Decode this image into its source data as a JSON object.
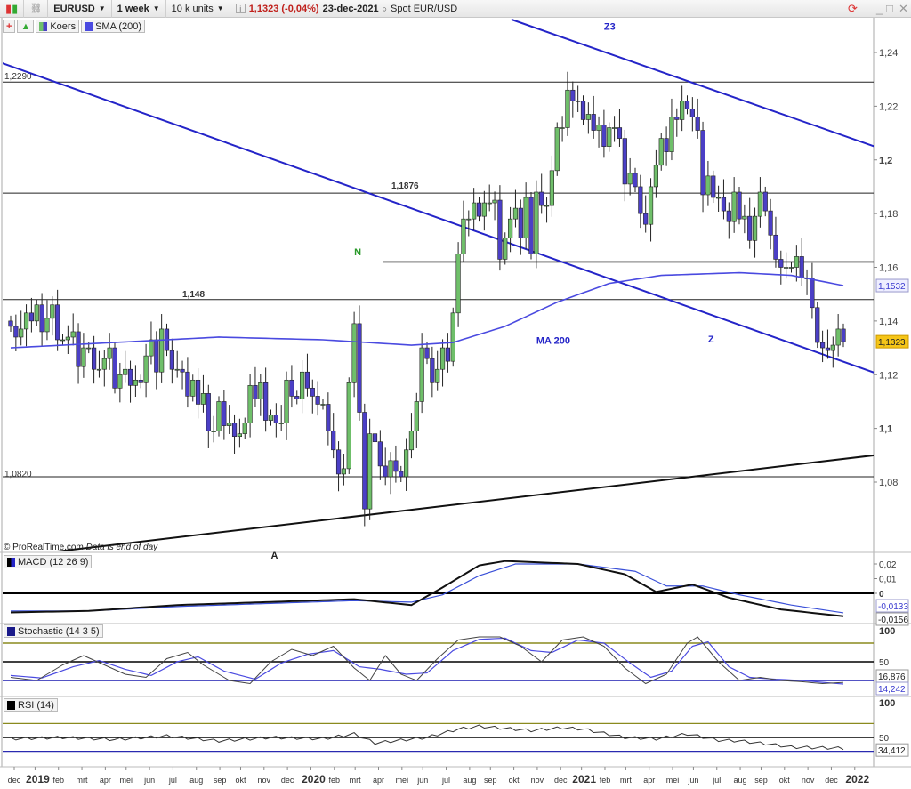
{
  "toolbar": {
    "symbol": "EURUSD",
    "timeframe": "1 week",
    "units": "10 k units",
    "price": "1,1323 (-0,04%)",
    "date": "23-dec-2021",
    "instrument": "Spot EUR/USD",
    "icons": [
      "candlestick-icon",
      "link-icon",
      "info-icon",
      "refresh-icon",
      "minimize-icon",
      "maximize-icon",
      "close-icon"
    ]
  },
  "legend": {
    "price": "Koers",
    "sma": "SMA (200)"
  },
  "copyright": "© ProRealTime.com",
  "data_note": "Data is end of day",
  "colors": {
    "up": "#6fbf6a",
    "down": "#4b3fc6",
    "trend_blue": "#2424c8",
    "sma": "#4a4ae0",
    "olive": "#8a8a1e",
    "last_price_bg": "#f5c518"
  },
  "chart_data": [
    {
      "type": "candlestick",
      "title": "EURUSD",
      "interval": "1 week",
      "start": "2018-12-03",
      "ylim": [
        1.06,
        1.25
      ],
      "yticks": [
        "1,08",
        "1,1",
        "1,12",
        "1,14",
        "1,16",
        "1,18",
        "1,2",
        "1,22",
        "1,24"
      ],
      "xticks": [
        "dec",
        "2019",
        "feb",
        "mrt",
        "apr",
        "mei",
        "jun",
        "jul",
        "aug",
        "sep",
        "okt",
        "nov",
        "dec",
        "2020",
        "feb",
        "mrt",
        "apr",
        "mei",
        "jun",
        "jul",
        "aug",
        "sep",
        "okt",
        "nov",
        "dec",
        "2021",
        "feb",
        "mrt",
        "apr",
        "mei",
        "jun",
        "jul",
        "aug",
        "sep",
        "okt",
        "nov",
        "dec",
        "2022"
      ],
      "weekly_close": [
        1.138,
        1.134,
        1.137,
        1.143,
        1.14,
        1.146,
        1.136,
        1.141,
        1.146,
        1.133,
        1.133,
        1.134,
        1.136,
        1.123,
        1.13,
        1.13,
        1.122,
        1.122,
        1.126,
        1.13,
        1.115,
        1.12,
        1.122,
        1.116,
        1.118,
        1.117,
        1.127,
        1.133,
        1.121,
        1.137,
        1.129,
        1.122,
        1.122,
        1.121,
        1.112,
        1.118,
        1.109,
        1.113,
        1.099,
        1.099,
        1.11,
        1.101,
        1.102,
        1.097,
        1.098,
        1.102,
        1.116,
        1.111,
        1.117,
        1.103,
        1.105,
        1.102,
        1.102,
        1.118,
        1.112,
        1.111,
        1.121,
        1.115,
        1.112,
        1.109,
        1.109,
        1.099,
        1.092,
        1.083,
        1.085,
        1.117,
        1.139,
        1.106,
        1.07,
        1.098,
        1.095,
        1.086,
        1.082,
        1.088,
        1.084,
        1.082,
        1.092,
        1.099,
        1.11,
        1.13,
        1.126,
        1.117,
        1.122,
        1.13,
        1.125,
        1.143,
        1.165,
        1.178,
        1.178,
        1.184,
        1.179,
        1.184,
        1.184,
        1.185,
        1.163,
        1.171,
        1.178,
        1.182,
        1.171,
        1.186,
        1.165,
        1.188,
        1.183,
        1.183,
        1.196,
        1.212,
        1.212,
        1.226,
        1.222,
        1.222,
        1.215,
        1.217,
        1.211,
        1.213,
        1.205,
        1.212,
        1.212,
        1.208,
        1.191,
        1.195,
        1.19,
        1.18,
        1.176,
        1.19,
        1.198,
        1.208,
        1.203,
        1.216,
        1.215,
        1.222,
        1.219,
        1.216,
        1.211,
        1.187,
        1.194,
        1.186,
        1.186,
        1.181,
        1.177,
        1.188,
        1.178,
        1.179,
        1.17,
        1.179,
        1.188,
        1.181,
        1.172,
        1.163,
        1.16,
        1.16,
        1.16,
        1.164,
        1.156,
        1.156,
        1.145,
        1.132,
        1.13,
        1.129,
        1.131,
        1.137,
        1.1323
      ],
      "sma200": [
        [
          0,
          1.13
        ],
        [
          20,
          1.132
        ],
        [
          40,
          1.134
        ],
        [
          60,
          1.133
        ],
        [
          77,
          1.131
        ],
        [
          85,
          1.132
        ],
        [
          95,
          1.138
        ],
        [
          105,
          1.147
        ],
        [
          115,
          1.154
        ],
        [
          125,
          1.157
        ],
        [
          140,
          1.158
        ],
        [
          150,
          1.157
        ],
        [
          160,
          1.1532
        ]
      ],
      "last_price": "1,1323",
      "sma_last": "1,1532",
      "horizontal_levels": [
        {
          "value": 1.229,
          "label": "1,2290"
        },
        {
          "value": 1.1876,
          "label": "1,1876"
        },
        {
          "value": 1.148,
          "label": "1,148"
        },
        {
          "value": 1.162,
          "label": "",
          "from_week": 71.5
        },
        {
          "value": 1.082,
          "label": "1,0820"
        }
      ],
      "trendlines": [
        {
          "color": "blue",
          "p1": [
            -2,
            1.2363
          ],
          "p2": [
            166,
            1.1207
          ]
        },
        {
          "color": "blue",
          "p1": [
            96.2,
            1.2523
          ],
          "p2": [
            166,
            1.205
          ]
        },
        {
          "color": "black",
          "p1": [
            8.2,
            1.054
          ],
          "p2": [
            166,
            1.09
          ]
        }
      ],
      "annotations": [
        {
          "text": "N",
          "color": "#2a9a2a",
          "week": 66,
          "price": 1.1645
        },
        {
          "text": "Z3",
          "color": "#2424c8",
          "week": 114,
          "price": 1.2485
        },
        {
          "text": "MA 200",
          "color": "#2424c8",
          "week": 101,
          "price": 1.1315
        },
        {
          "text": "Z",
          "color": "#2424c8",
          "week": 134,
          "price": 1.132
        },
        {
          "text": "A",
          "color": "#222",
          "week": 50,
          "price": 1.0515
        }
      ]
    },
    {
      "type": "line",
      "title": "MACD (12 26 9)",
      "ylim": [
        -0.019,
        0.024
      ],
      "yticks": [
        "0,02",
        "0,01",
        "0"
      ],
      "macd": [
        [
          0,
          -0.013
        ],
        [
          15,
          -0.012
        ],
        [
          32,
          -0.008
        ],
        [
          49,
          -0.006
        ],
        [
          66,
          -0.004
        ],
        [
          77,
          -0.008
        ],
        [
          83,
          0.004
        ],
        [
          90,
          0.019
        ],
        [
          95,
          0.022
        ],
        [
          109,
          0.02
        ],
        [
          118,
          0.013
        ],
        [
          124,
          0.001
        ],
        [
          131,
          0.006
        ],
        [
          138,
          -0.003
        ],
        [
          148,
          -0.011
        ],
        [
          160,
          -0.0156
        ]
      ],
      "signal": [
        [
          0,
          -0.012
        ],
        [
          15,
          -0.012
        ],
        [
          32,
          -0.009
        ],
        [
          49,
          -0.007
        ],
        [
          66,
          -0.005
        ],
        [
          77,
          -0.006
        ],
        [
          83,
          -0.001
        ],
        [
          90,
          0.012
        ],
        [
          97,
          0.02
        ],
        [
          109,
          0.02
        ],
        [
          120,
          0.015
        ],
        [
          126,
          0.005
        ],
        [
          133,
          0.005
        ],
        [
          140,
          -0.001
        ],
        [
          150,
          -0.008
        ],
        [
          160,
          -0.0133
        ]
      ],
      "macd_last": "-0,0156",
      "signal_last": "-0,0133"
    },
    {
      "type": "line",
      "title": "Stochastic (14 3 5)",
      "ylim": [
        0,
        105
      ],
      "yticks": [
        "100",
        "50"
      ],
      "levels": [
        80,
        50,
        20
      ],
      "k": [
        [
          0,
          25
        ],
        [
          5,
          20
        ],
        [
          10,
          45
        ],
        [
          14,
          60
        ],
        [
          18,
          45
        ],
        [
          22,
          30
        ],
        [
          26,
          25
        ],
        [
          30,
          55
        ],
        [
          34,
          65
        ],
        [
          37,
          45
        ],
        [
          42,
          20
        ],
        [
          46,
          15
        ],
        [
          50,
          50
        ],
        [
          54,
          70
        ],
        [
          58,
          60
        ],
        [
          62,
          75
        ],
        [
          66,
          40
        ],
        [
          69,
          20
        ],
        [
          72,
          60
        ],
        [
          75,
          30
        ],
        [
          78,
          20
        ],
        [
          82,
          55
        ],
        [
          86,
          85
        ],
        [
          90,
          90
        ],
        [
          94,
          90
        ],
        [
          98,
          75
        ],
        [
          102,
          50
        ],
        [
          106,
          85
        ],
        [
          110,
          90
        ],
        [
          114,
          75
        ],
        [
          118,
          40
        ],
        [
          122,
          15
        ],
        [
          126,
          30
        ],
        [
          130,
          80
        ],
        [
          132,
          90
        ],
        [
          136,
          50
        ],
        [
          140,
          20
        ],
        [
          144,
          25
        ],
        [
          148,
          20
        ],
        [
          152,
          18
        ],
        [
          156,
          15
        ],
        [
          160,
          16.876
        ]
      ],
      "d": [
        [
          0,
          28
        ],
        [
          6,
          24
        ],
        [
          12,
          42
        ],
        [
          17,
          52
        ],
        [
          22,
          38
        ],
        [
          27,
          28
        ],
        [
          32,
          50
        ],
        [
          36,
          58
        ],
        [
          41,
          35
        ],
        [
          47,
          22
        ],
        [
          52,
          48
        ],
        [
          57,
          62
        ],
        [
          62,
          68
        ],
        [
          67,
          42
        ],
        [
          71,
          38
        ],
        [
          76,
          30
        ],
        [
          80,
          32
        ],
        [
          85,
          68
        ],
        [
          90,
          86
        ],
        [
          95,
          88
        ],
        [
          100,
          68
        ],
        [
          104,
          65
        ],
        [
          109,
          85
        ],
        [
          114,
          80
        ],
        [
          119,
          48
        ],
        [
          123,
          25
        ],
        [
          127,
          35
        ],
        [
          131,
          75
        ],
        [
          134,
          82
        ],
        [
          138,
          42
        ],
        [
          142,
          25
        ],
        [
          147,
          22
        ],
        [
          152,
          20
        ],
        [
          156,
          17
        ],
        [
          160,
          14.242
        ]
      ],
      "k_last": "16,876",
      "d_last": "14,242"
    },
    {
      "type": "line",
      "title": "RSI (14)",
      "ylim": [
        0,
        105
      ],
      "yticks": [
        "100",
        "50"
      ],
      "levels": [
        70,
        50,
        30
      ],
      "rsi": [
        [
          0,
          48
        ],
        [
          10,
          50
        ],
        [
          20,
          47
        ],
        [
          30,
          52
        ],
        [
          40,
          45
        ],
        [
          50,
          50
        ],
        [
          60,
          48
        ],
        [
          66,
          55
        ],
        [
          70,
          42
        ],
        [
          80,
          50
        ],
        [
          86,
          62
        ],
        [
          90,
          66
        ],
        [
          95,
          63
        ],
        [
          100,
          60
        ],
        [
          106,
          64
        ],
        [
          110,
          62
        ],
        [
          118,
          50
        ],
        [
          124,
          48
        ],
        [
          130,
          55
        ],
        [
          136,
          46
        ],
        [
          140,
          45
        ],
        [
          146,
          40
        ],
        [
          150,
          36
        ],
        [
          156,
          35
        ],
        [
          160,
          34.412
        ]
      ],
      "rsi_last": "34,412"
    }
  ]
}
